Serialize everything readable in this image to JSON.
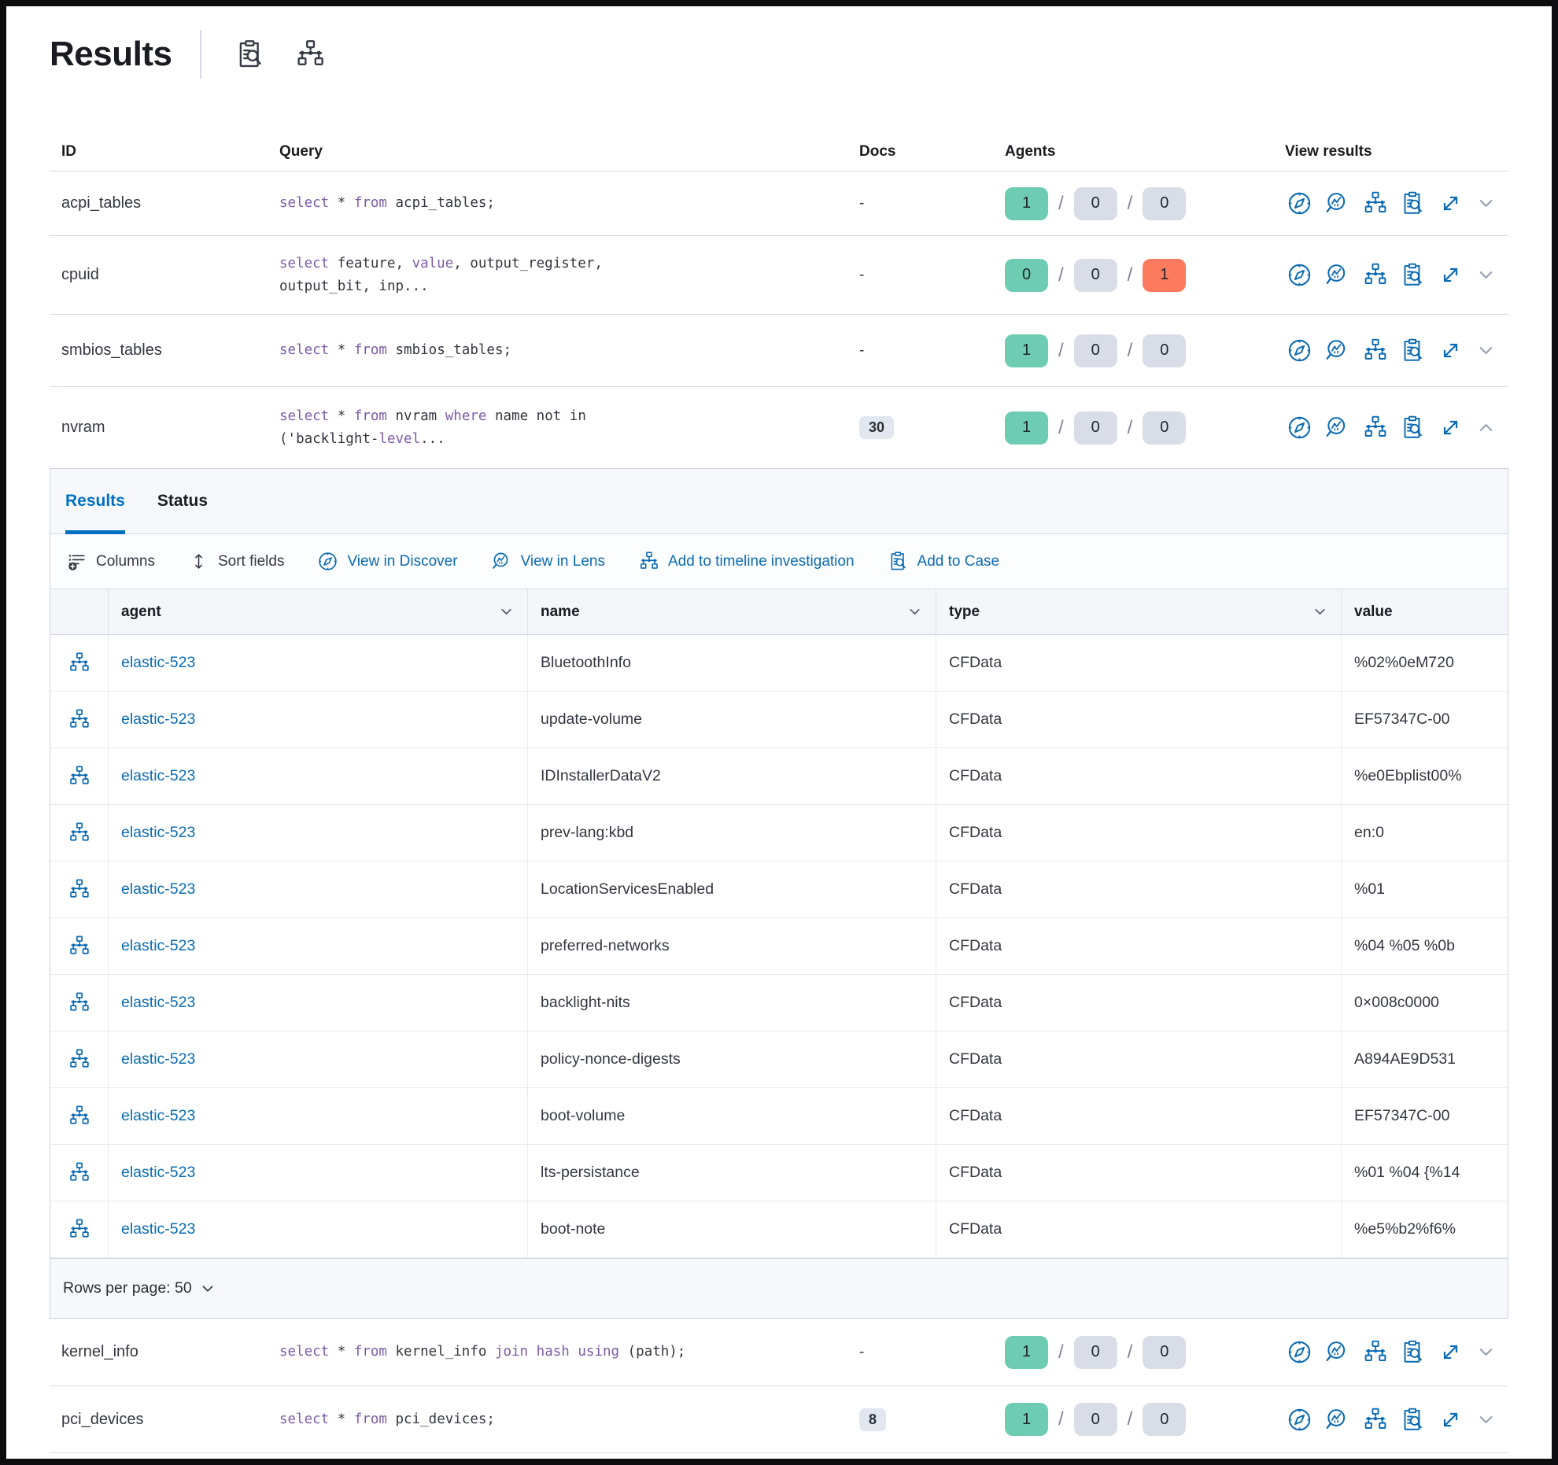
{
  "header": {
    "title": "Results"
  },
  "table": {
    "columns": [
      "ID",
      "Query",
      "Docs",
      "Agents",
      "View results"
    ],
    "rows": [
      {
        "id": "acpi_tables",
        "docs": "-",
        "agents": [
          "1",
          "0",
          "0"
        ],
        "a3": "n",
        "chev": "down",
        "q": [
          [
            {
              "t": "select"
            },
            {
              "t": " * "
            },
            {
              "t": "from"
            },
            {
              "t": " acpi_tables;"
            }
          ]
        ]
      },
      {
        "id": "cpuid",
        "docs": "-",
        "agents": [
          "0",
          "0",
          "1"
        ],
        "a3": "r",
        "chev": "down",
        "q": [
          [
            {
              "t": "select"
            },
            {
              "t": " feature, "
            },
            {
              "t": "value"
            },
            {
              "t": ", output_register,"
            }
          ],
          [
            {
              "t": "output_bit, inp..."
            }
          ]
        ]
      },
      {
        "id": "smbios_tables",
        "docs": "-",
        "agents": [
          "1",
          "0",
          "0"
        ],
        "a3": "n",
        "chev": "down",
        "q": [
          [
            {
              "t": "select"
            },
            {
              "t": " * "
            },
            {
              "t": "from"
            },
            {
              "t": " smbios_tables;"
            }
          ]
        ]
      },
      {
        "id": "nvram",
        "docs": "30",
        "agents": [
          "1",
          "0",
          "0"
        ],
        "a3": "n",
        "chev": "up",
        "q": [
          [
            {
              "t": "select"
            },
            {
              "t": " * "
            },
            {
              "t": "from"
            },
            {
              "t": " nvram "
            },
            {
              "t": "where"
            },
            {
              "t": " name not in"
            }
          ],
          [
            {
              "t": "('backlight-"
            },
            {
              "t": "level"
            },
            {
              "t": "..."
            }
          ]
        ]
      },
      {
        "id": "kernel_info",
        "docs": "-",
        "agents": [
          "1",
          "0",
          "0"
        ],
        "a3": "n",
        "chev": "down",
        "q": [
          [
            {
              "t": "select"
            },
            {
              "t": " * "
            },
            {
              "t": "from"
            },
            {
              "t": " kernel_info "
            },
            {
              "t": "join"
            },
            {
              "t": " "
            },
            {
              "t": "hash"
            },
            {
              "t": " "
            },
            {
              "t": "using"
            },
            {
              "t": " (path);"
            }
          ]
        ]
      },
      {
        "id": "pci_devices",
        "docs": "8",
        "agents": [
          "1",
          "0",
          "0"
        ],
        "a3": "n",
        "chev": "down",
        "q": [
          [
            {
              "t": "select"
            },
            {
              "t": " * "
            },
            {
              "t": "from"
            },
            {
              "t": " pci_devices;"
            }
          ]
        ]
      }
    ]
  },
  "panel": {
    "tabs": {
      "results": "Results",
      "status": "Status"
    },
    "toolbar": {
      "columns": "Columns",
      "sort": "Sort fields",
      "discover": "View in Discover",
      "lens": "View in Lens",
      "timeline": "Add to timeline investigation",
      "case": "Add to Case"
    },
    "grid": {
      "headers": {
        "agent": "agent",
        "name": "name",
        "type": "type",
        "value": "value"
      },
      "rows": [
        {
          "agent": "elastic-523",
          "name": "BluetoothInfo",
          "type": "CFData",
          "value": "%02%0eM720"
        },
        {
          "agent": "elastic-523",
          "name": "update-volume",
          "type": "CFData",
          "value": "EF57347C-00"
        },
        {
          "agent": "elastic-523",
          "name": "IDInstallerDataV2",
          "type": "CFData",
          "value": "%e0Ebplist00%"
        },
        {
          "agent": "elastic-523",
          "name": "prev-lang:kbd",
          "type": "CFData",
          "value": "en:0"
        },
        {
          "agent": "elastic-523",
          "name": "LocationServicesEnabled",
          "type": "CFData",
          "value": "%01"
        },
        {
          "agent": "elastic-523",
          "name": "preferred-networks",
          "type": "CFData",
          "value": "%04 %05 %0b"
        },
        {
          "agent": "elastic-523",
          "name": "backlight-nits",
          "type": "CFData",
          "value": "0×008c0000"
        },
        {
          "agent": "elastic-523",
          "name": "policy-nonce-digests",
          "type": "CFData",
          "value": "A894AE9D531"
        },
        {
          "agent": "elastic-523",
          "name": "boot-volume",
          "type": "CFData",
          "value": "EF57347C-00"
        },
        {
          "agent": "elastic-523",
          "name": "lts-persistance",
          "type": "CFData",
          "value": "%01 %04 {%14"
        },
        {
          "agent": "elastic-523",
          "name": "boot-note",
          "type": "CFData",
          "value": "%e5%b2%f6%"
        }
      ]
    },
    "footer": {
      "rows_per_page": "Rows per page: 50"
    }
  }
}
